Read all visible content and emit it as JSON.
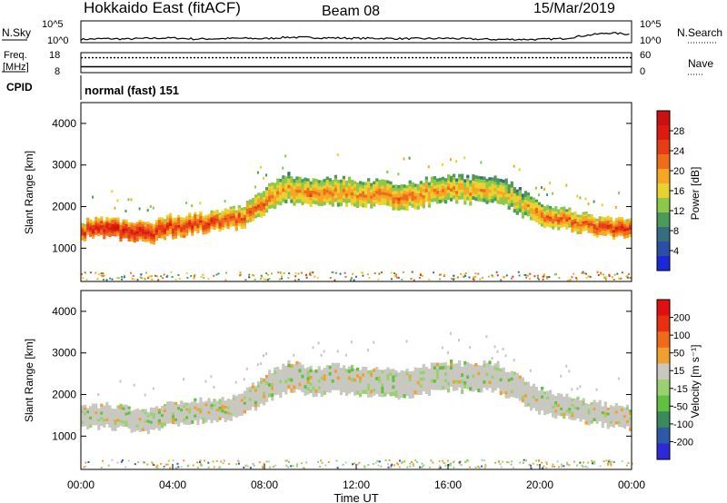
{
  "header": {
    "station": "Hokkaido East (fitACF)",
    "beam": "Beam 08",
    "date": "15/Mar/2019"
  },
  "left_labels": {
    "nsky": "N.Sky",
    "freq_line1": "Freq.",
    "freq_line2": "[MHz]",
    "cpid": "CPID"
  },
  "right_labels": {
    "nsearch": "N.Search",
    "nave": "Nave"
  },
  "cpid_text": "normal (fast) 151",
  "colors": {
    "axis": "#000000",
    "noise_trace": "#000000"
  },
  "chart_data": [
    {
      "type": "line",
      "name": "noise-panel",
      "ylabel_left": "N.Sky",
      "ylabel_right": "N.Search",
      "left_ticks": [
        "10^5",
        "10^0"
      ],
      "right_ticks": [
        "10^5",
        "10^0"
      ],
      "x_hours": [
        0,
        1,
        2,
        3,
        4,
        5,
        6,
        7,
        8,
        9,
        10,
        11,
        12,
        13,
        14,
        15,
        16,
        17,
        18,
        19,
        20,
        21,
        22,
        23,
        24
      ],
      "sky_log": [
        0.4,
        0.6,
        0.5,
        0.7,
        0.8,
        0.5,
        0.6,
        0.7,
        0.6,
        1.0,
        0.9,
        0.8,
        0.7,
        0.7,
        0.6,
        0.6,
        0.7,
        0.5,
        0.4,
        0.4,
        0.4,
        0.6,
        1.5,
        2.2,
        1.8
      ],
      "ylim_log": [
        0,
        5
      ]
    },
    {
      "type": "line",
      "name": "frequency-panel",
      "left_ticks": [
        "18",
        "8"
      ],
      "right_ticks": [
        "60",
        "0"
      ],
      "freq_mhz": 10.5,
      "nave": 48,
      "freq_range": [
        8,
        18
      ],
      "nave_range": [
        0,
        60
      ]
    },
    {
      "type": "heatmap",
      "name": "power",
      "xlabel": "",
      "ylabel": "Slant Range [km]",
      "ylim": [
        200,
        4500
      ],
      "y_ticks": [
        1000,
        2000,
        3000,
        4000
      ],
      "colorbar_label": "Power [dB]",
      "colorbar_ticks": [
        4,
        8,
        12,
        16,
        20,
        24,
        28
      ],
      "colorbar_range": [
        0,
        32
      ],
      "colorbar_colors": [
        "#1a28d8",
        "#2c4fa6",
        "#356e7e",
        "#4a9a5a",
        "#8cc84a",
        "#e9d230",
        "#f5a623",
        "#ef6d1a",
        "#e63e14",
        "#dd1a10",
        "#cc1010"
      ],
      "echo_band_center_km": [
        1450,
        1500,
        1420,
        1380,
        1550,
        1600,
        1650,
        1750,
        2150,
        2450,
        2300,
        2400,
        2350,
        2300,
        2250,
        2350,
        2450,
        2400,
        2450,
        2150,
        1850,
        1700,
        1600,
        1500,
        1450
      ],
      "echo_band_width_km": [
        200,
        220,
        220,
        240,
        250,
        220,
        220,
        250,
        300,
        320,
        300,
        320,
        300,
        300,
        300,
        300,
        300,
        300,
        300,
        300,
        260,
        240,
        220,
        220,
        220
      ],
      "echo_power_db": [
        26,
        28,
        28,
        27,
        26,
        26,
        25,
        24,
        22,
        20,
        22,
        21,
        21,
        22,
        22,
        21,
        20,
        20,
        19,
        18,
        22,
        23,
        24,
        26,
        26
      ]
    },
    {
      "type": "heatmap",
      "name": "velocity",
      "xlabel": "Time UT",
      "ylabel": "Slant Range [km]",
      "ylim": [
        200,
        4500
      ],
      "y_ticks": [
        1000,
        2000,
        3000,
        4000
      ],
      "x_ticks": [
        "00:00",
        "04:00",
        "08:00",
        "12:00",
        "16:00",
        "20:00",
        "00:00"
      ],
      "colorbar_label": "Velocity [m s⁻¹]",
      "colorbar_ticks": [
        200,
        100,
        50,
        15,
        -15,
        -50,
        -100,
        -200
      ],
      "colorbar_range": [
        -250,
        250
      ],
      "colorbar_colors": [
        "#2a2ad8",
        "#2c5aa8",
        "#3a8a5a",
        "#60c040",
        "#9ad070",
        "#c8c8c0",
        "#f0a030",
        "#ef6a1a",
        "#e83010",
        "#e01010"
      ],
      "ground_scatter_band_center_km": [
        1450,
        1500,
        1420,
        1380,
        1550,
        1600,
        1650,
        1750,
        2150,
        2450,
        2300,
        2400,
        2350,
        2300,
        2250,
        2350,
        2450,
        2400,
        2450,
        2150,
        1850,
        1700,
        1600,
        1500,
        1450
      ],
      "ground_scatter_band_width_km": [
        250,
        260,
        260,
        260,
        260,
        260,
        250,
        260,
        320,
        340,
        320,
        320,
        320,
        320,
        320,
        320,
        320,
        320,
        320,
        300,
        280,
        260,
        250,
        250,
        250
      ],
      "ground_scatter_velocity": 0
    }
  ]
}
